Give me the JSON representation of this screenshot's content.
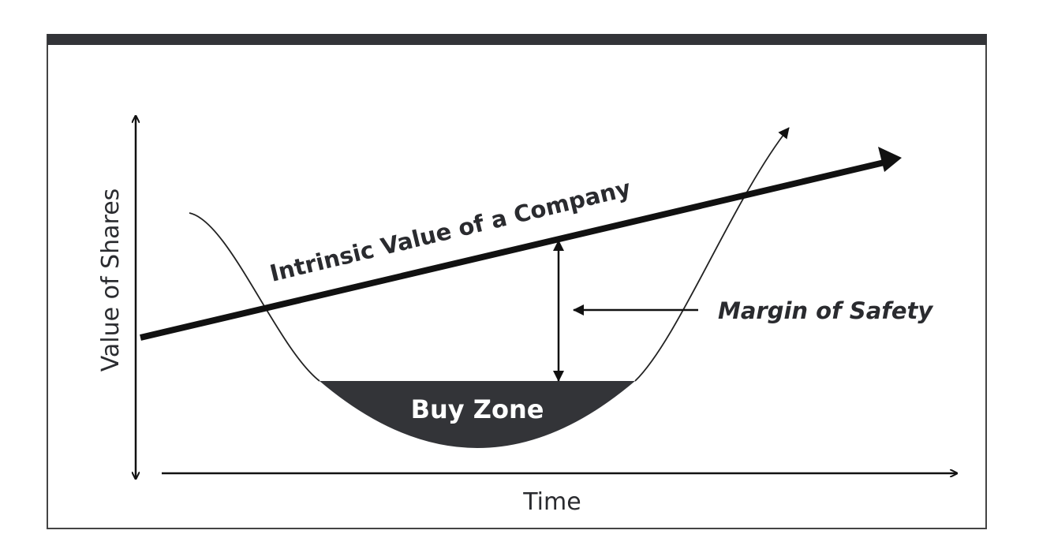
{
  "diagram": {
    "y_axis_label": "Value of Shares",
    "x_axis_label": "Time",
    "intrinsic_label": "Intrinsic Value of a Company",
    "margin_label": "Margin of Safety",
    "buy_zone_label": "Buy Zone",
    "colors": {
      "dark": "#333438",
      "text": "#2a2b2f",
      "background": "#ffffff"
    }
  }
}
